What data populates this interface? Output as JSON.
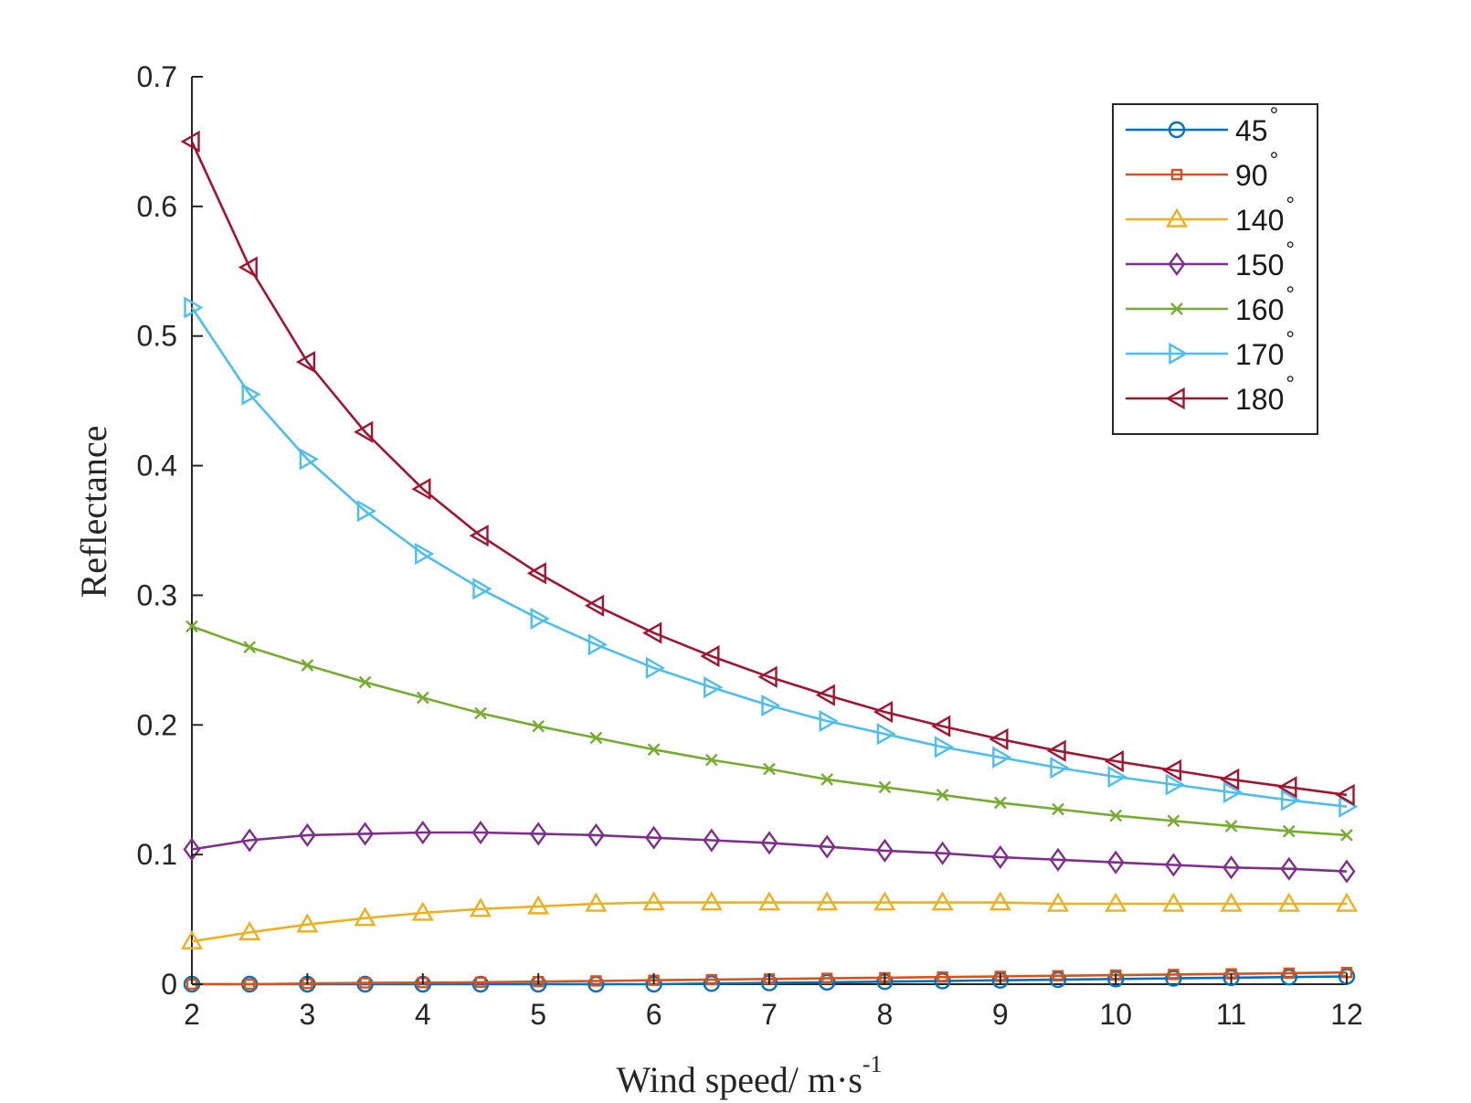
{
  "chart_data": {
    "type": "line",
    "xlabel": "Wind speed/ m·s",
    "xlabel_sup": "-1",
    "ylabel": "Reflectance",
    "xlim": [
      2,
      12
    ],
    "ylim": [
      0,
      0.7
    ],
    "x_ticks": [
      2,
      3,
      4,
      5,
      6,
      7,
      8,
      9,
      10,
      11,
      12
    ],
    "y_ticks": [
      0,
      0.1,
      0.2,
      0.3,
      0.4,
      0.5,
      0.6,
      0.7
    ],
    "y_tick_labels": [
      "0",
      "0.1",
      "0.2",
      "0.3",
      "0.4",
      "0.5",
      "0.6",
      "0.7"
    ],
    "grid": false,
    "legend_position": "top-right",
    "x": [
      2,
      2.5,
      3,
      3.5,
      4,
      4.5,
      5,
      5.5,
      6,
      6.5,
      7,
      7.5,
      8,
      8.5,
      9,
      9.5,
      10,
      10.5,
      11,
      11.5,
      12
    ],
    "series": [
      {
        "name": "45",
        "unit": "°",
        "color": "#0072BD",
        "marker": "circle",
        "values": [
          0.0,
          0.0,
          0.0,
          0.0,
          0.0,
          0.0,
          0.0,
          0.0,
          0.0,
          0.0005,
          0.001,
          0.0015,
          0.002,
          0.0025,
          0.003,
          0.0035,
          0.004,
          0.0045,
          0.005,
          0.0055,
          0.006
        ]
      },
      {
        "name": "90",
        "unit": "°",
        "color": "#D95319",
        "marker": "square",
        "values": [
          0.0,
          0.0,
          0.0005,
          0.001,
          0.0012,
          0.0015,
          0.002,
          0.0025,
          0.003,
          0.0035,
          0.004,
          0.0045,
          0.005,
          0.0055,
          0.006,
          0.0065,
          0.007,
          0.0075,
          0.008,
          0.0085,
          0.009
        ]
      },
      {
        "name": "140",
        "unit": "°",
        "color": "#EDB120",
        "marker": "triangle-up",
        "values": [
          0.033,
          0.04,
          0.046,
          0.051,
          0.055,
          0.058,
          0.06,
          0.062,
          0.063,
          0.063,
          0.063,
          0.063,
          0.063,
          0.063,
          0.063,
          0.062,
          0.062,
          0.062,
          0.062,
          0.062,
          0.062
        ]
      },
      {
        "name": "150",
        "unit": "°",
        "color": "#7E2F8E",
        "marker": "diamond",
        "values": [
          0.104,
          0.111,
          0.115,
          0.116,
          0.117,
          0.117,
          0.116,
          0.115,
          0.113,
          0.111,
          0.109,
          0.106,
          0.103,
          0.101,
          0.098,
          0.096,
          0.094,
          0.092,
          0.09,
          0.089,
          0.087
        ]
      },
      {
        "name": "160",
        "unit": "°",
        "color": "#77AC30",
        "marker": "x",
        "values": [
          0.276,
          0.26,
          0.246,
          0.233,
          0.221,
          0.209,
          0.199,
          0.19,
          0.181,
          0.173,
          0.166,
          0.158,
          0.152,
          0.146,
          0.14,
          0.135,
          0.13,
          0.126,
          0.122,
          0.118,
          0.115
        ]
      },
      {
        "name": "170",
        "unit": "°",
        "color": "#4DBEEE",
        "marker": "triangle-right",
        "values": [
          0.522,
          0.455,
          0.405,
          0.365,
          0.332,
          0.305,
          0.282,
          0.262,
          0.244,
          0.229,
          0.215,
          0.203,
          0.193,
          0.183,
          0.175,
          0.167,
          0.16,
          0.154,
          0.148,
          0.142,
          0.137
        ]
      },
      {
        "name": "180",
        "unit": "°",
        "color": "#A2142F",
        "marker": "triangle-left",
        "values": [
          0.65,
          0.553,
          0.48,
          0.426,
          0.382,
          0.346,
          0.317,
          0.292,
          0.271,
          0.253,
          0.237,
          0.223,
          0.21,
          0.199,
          0.189,
          0.18,
          0.172,
          0.165,
          0.158,
          0.152,
          0.146
        ]
      }
    ]
  }
}
